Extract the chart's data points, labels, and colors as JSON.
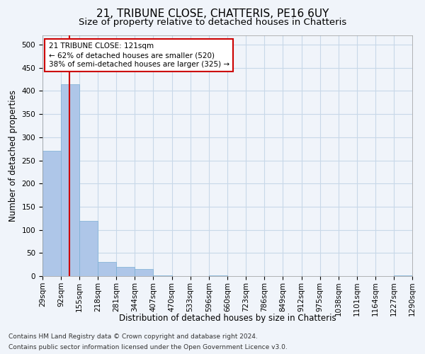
{
  "title1": "21, TRIBUNE CLOSE, CHATTERIS, PE16 6UY",
  "title2": "Size of property relative to detached houses in Chatteris",
  "xlabel": "Distribution of detached houses by size in Chatteris",
  "ylabel": "Number of detached properties",
  "footer1": "Contains HM Land Registry data © Crown copyright and database right 2024.",
  "footer2": "Contains public sector information licensed under the Open Government Licence v3.0.",
  "bin_edges": [
    29,
    92,
    155,
    218,
    281,
    344,
    407,
    470,
    533,
    596,
    660,
    723,
    786,
    849,
    912,
    975,
    1038,
    1101,
    1164,
    1227,
    1290
  ],
  "bar_heights": [
    270,
    415,
    120,
    30,
    20,
    15,
    2,
    0,
    0,
    2,
    0,
    0,
    0,
    0,
    0,
    0,
    0,
    0,
    0,
    2
  ],
  "bar_color": "#aec6e8",
  "bar_edge_color": "#7aafd4",
  "property_line_x": 121,
  "property_line_color": "#cc0000",
  "annotation_text": "21 TRIBUNE CLOSE: 121sqm\n← 62% of detached houses are smaller (520)\n38% of semi-detached houses are larger (325) →",
  "annotation_box_color": "#ffffff",
  "annotation_box_edge": "#cc0000",
  "ylim": [
    0,
    520
  ],
  "yticks": [
    0,
    50,
    100,
    150,
    200,
    250,
    300,
    350,
    400,
    450,
    500
  ],
  "background_color": "#f0f4fa",
  "grid_color": "#c8d8e8",
  "title1_fontsize": 11,
  "title2_fontsize": 9.5,
  "tick_fontsize": 7.5,
  "label_fontsize": 8.5,
  "footer_fontsize": 6.5
}
